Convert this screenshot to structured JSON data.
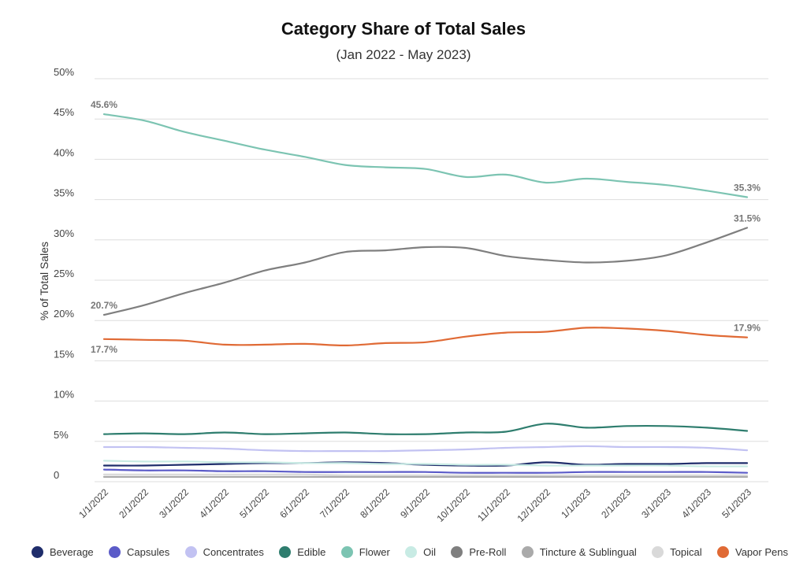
{
  "chart_data": {
    "type": "line",
    "title": "Category Share of Total Sales",
    "subtitle": "(Jan 2022 - May 2023)",
    "xlabel": "",
    "ylabel": "% of Total Sales",
    "ylim": [
      0,
      50
    ],
    "y_ticks": [
      {
        "value": 0,
        "label": "0"
      },
      {
        "value": 5,
        "label": "5%"
      },
      {
        "value": 10,
        "label": "10%"
      },
      {
        "value": 15,
        "label": "15%"
      },
      {
        "value": 20,
        "label": "20%"
      },
      {
        "value": 25,
        "label": "25%"
      },
      {
        "value": 30,
        "label": "30%"
      },
      {
        "value": 35,
        "label": "35%"
      },
      {
        "value": 40,
        "label": "40%"
      },
      {
        "value": 45,
        "label": "45%"
      },
      {
        "value": 50,
        "label": "50%"
      }
    ],
    "grid": true,
    "legend_position": "bottom",
    "categories": [
      "1/1/2022",
      "2/1/2022",
      "3/1/2022",
      "4/1/2022",
      "5/1/2022",
      "6/1/2022",
      "7/1/2022",
      "8/1/2022",
      "9/1/2022",
      "10/1/2022",
      "11/1/2022",
      "12/1/2022",
      "1/1/2023",
      "2/1/2023",
      "3/1/2023",
      "4/1/2023",
      "5/1/2023"
    ],
    "series": [
      {
        "name": "Beverage",
        "color": "#1f2d6b",
        "values": [
          2.0,
          2.0,
          2.1,
          2.2,
          2.3,
          2.3,
          2.4,
          2.3,
          2.1,
          2.0,
          2.0,
          2.4,
          2.1,
          2.2,
          2.2,
          2.3,
          2.3
        ]
      },
      {
        "name": "Capsules",
        "color": "#5b5bc8",
        "values": [
          1.5,
          1.4,
          1.4,
          1.3,
          1.3,
          1.2,
          1.2,
          1.2,
          1.2,
          1.1,
          1.1,
          1.1,
          1.2,
          1.2,
          1.2,
          1.2,
          1.1
        ]
      },
      {
        "name": "Concentrates",
        "color": "#c2c2f2",
        "values": [
          4.3,
          4.3,
          4.2,
          4.1,
          3.9,
          3.8,
          3.8,
          3.8,
          3.9,
          4.0,
          4.2,
          4.3,
          4.4,
          4.3,
          4.3,
          4.2,
          3.9
        ]
      },
      {
        "name": "Edible",
        "color": "#2e7d6e",
        "values": [
          5.9,
          6.0,
          5.9,
          6.1,
          5.9,
          6.0,
          6.1,
          5.9,
          5.9,
          6.1,
          6.2,
          7.2,
          6.7,
          6.9,
          6.9,
          6.7,
          6.3
        ]
      },
      {
        "name": "Flower",
        "color": "#7cc4b2",
        "values": [
          45.6,
          44.8,
          43.4,
          42.3,
          41.2,
          40.3,
          39.3,
          39.0,
          38.8,
          37.8,
          38.1,
          37.1,
          37.6,
          37.2,
          36.8,
          36.1,
          35.3
        ]
      },
      {
        "name": "Oil",
        "color": "#c8ebe4",
        "values": [
          2.6,
          2.5,
          2.5,
          2.4,
          2.4,
          2.3,
          2.3,
          2.2,
          2.2,
          2.1,
          2.1,
          2.0,
          2.0,
          2.0,
          2.0,
          1.9,
          1.9
        ]
      },
      {
        "name": "Pre-Roll",
        "color": "#7f7f7f",
        "values": [
          20.7,
          21.9,
          23.4,
          24.7,
          26.2,
          27.2,
          28.5,
          28.7,
          29.1,
          29.0,
          28.0,
          27.5,
          27.2,
          27.4,
          28.1,
          29.7,
          31.5
        ]
      },
      {
        "name": "Tincture & Sublingual",
        "color": "#aaaaaa",
        "values": [
          0.6,
          0.6,
          0.6,
          0.6,
          0.6,
          0.6,
          0.6,
          0.6,
          0.6,
          0.6,
          0.6,
          0.6,
          0.6,
          0.6,
          0.6,
          0.6,
          0.6
        ]
      },
      {
        "name": "Topical",
        "color": "#d9d9d9",
        "values": [
          0.9,
          0.9,
          0.9,
          0.9,
          0.9,
          0.9,
          0.8,
          0.8,
          0.8,
          0.8,
          0.8,
          0.8,
          0.8,
          0.8,
          0.8,
          0.8,
          0.8
        ]
      },
      {
        "name": "Vapor Pens",
        "color": "#e06a35",
        "values": [
          17.7,
          17.6,
          17.5,
          17.0,
          17.0,
          17.1,
          16.9,
          17.2,
          17.3,
          18.0,
          18.5,
          18.6,
          19.1,
          19.0,
          18.7,
          18.2,
          17.9
        ]
      }
    ],
    "annotations": [
      {
        "series": "Flower",
        "index": 0,
        "text": "45.6%",
        "placement": "above"
      },
      {
        "series": "Flower",
        "index": 16,
        "text": "35.3%",
        "placement": "above"
      },
      {
        "series": "Pre-Roll",
        "index": 0,
        "text": "20.7%",
        "placement": "above"
      },
      {
        "series": "Pre-Roll",
        "index": 16,
        "text": "31.5%",
        "placement": "above"
      },
      {
        "series": "Vapor Pens",
        "index": 0,
        "text": "17.7%",
        "placement": "below"
      },
      {
        "series": "Vapor Pens",
        "index": 16,
        "text": "17.9%",
        "placement": "above"
      }
    ]
  }
}
